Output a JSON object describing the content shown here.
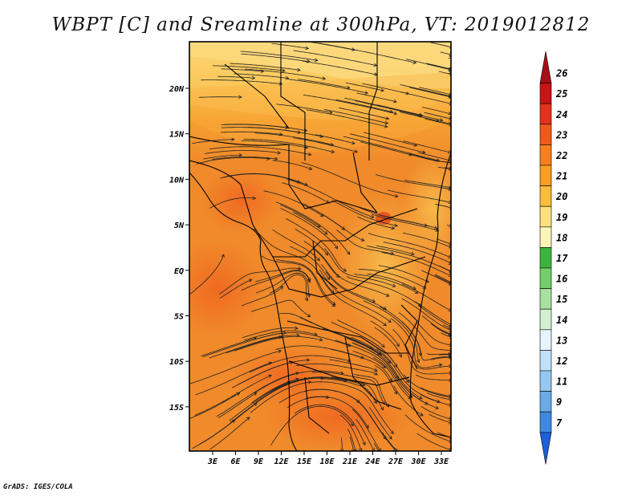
{
  "title": "WBPT [C] and Sreamline at 300hPa, VT: 2019012812",
  "footer": "GrADS: IGES/COLA",
  "map": {
    "lon_labels": [
      "3E",
      "6E",
      "9E",
      "12E",
      "15E",
      "18E",
      "21E",
      "24E",
      "27E",
      "30E",
      "33E"
    ],
    "lat_labels": [
      "20N",
      "15N",
      "10N",
      "5N",
      "EQ",
      "5S",
      "10S",
      "15S"
    ]
  },
  "colorbar": {
    "labels": [
      "26",
      "25",
      "24",
      "23",
      "22",
      "21",
      "20",
      "19",
      "18",
      "17",
      "16",
      "15",
      "14",
      "13",
      "12",
      "11",
      "9",
      "7"
    ],
    "colors": [
      "#a50f15",
      "#c81414",
      "#e3331a",
      "#ef5a1a",
      "#f7801e",
      "#fa9f22",
      "#fbbd3a",
      "#fde07c",
      "#fdf5b8",
      "#3cb43c",
      "#72cf6a",
      "#a8e0a0",
      "#d2f0d0",
      "#e6f5fb",
      "#bfe0f7",
      "#94c8f0",
      "#6aaae8",
      "#3e8ae0",
      "#1e5fd8"
    ]
  },
  "palette": {
    "frame": "#111111",
    "streamline": "#222222",
    "field_base": "#f08a2a"
  }
}
